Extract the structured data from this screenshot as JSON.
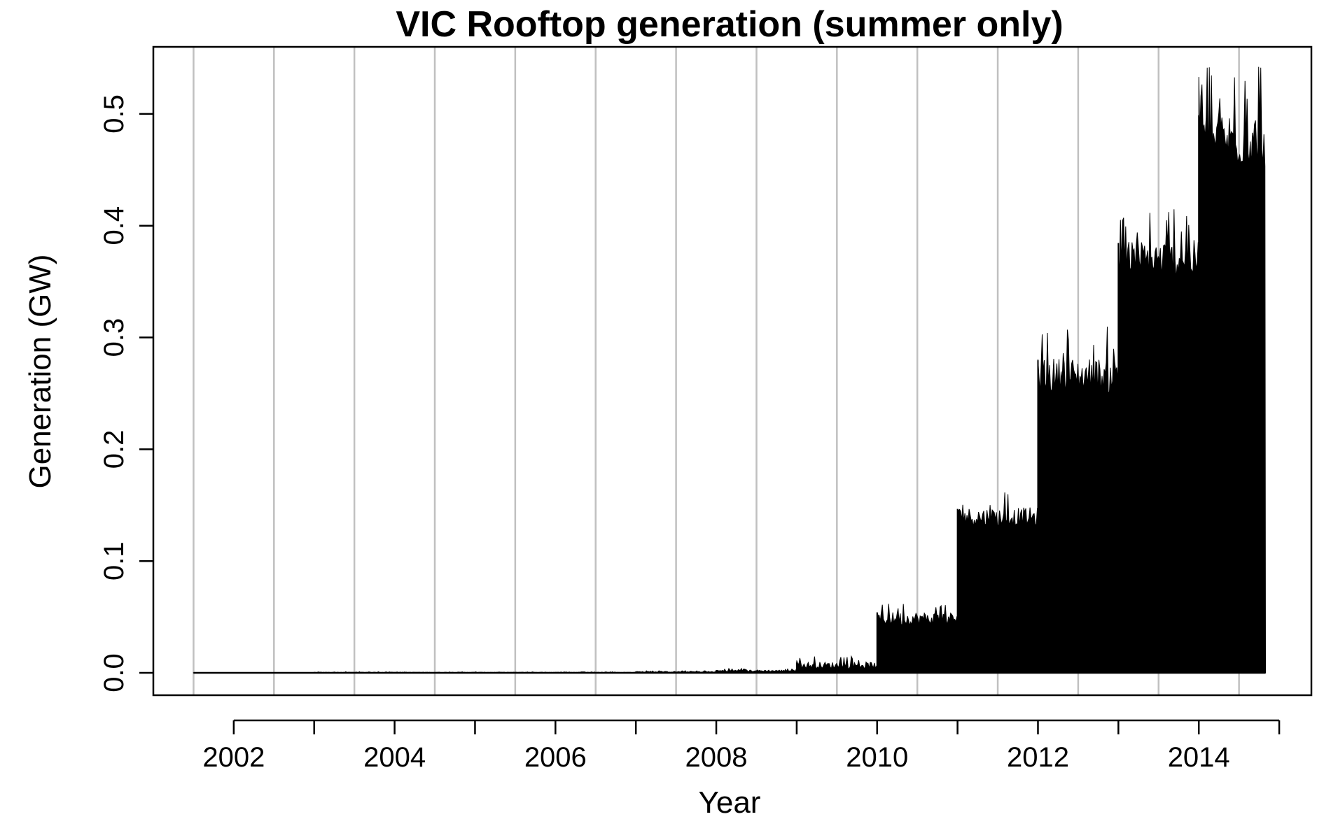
{
  "chart_data": {
    "type": "area",
    "title": "VIC Rooftop generation (summer only)",
    "xlabel": "Year",
    "ylabel": "Generation (GW)",
    "xlim": [
      2001.0,
      2015.4
    ],
    "ylim": [
      -0.02,
      0.56
    ],
    "x_ticks": [
      2002,
      2003,
      2004,
      2005,
      2006,
      2007,
      2008,
      2009,
      2010,
      2011,
      2012,
      2013,
      2014,
      2015
    ],
    "x_tick_labels": [
      "2002",
      "",
      "2004",
      "",
      "2006",
      "",
      "2008",
      "",
      "2010",
      "",
      "2012",
      "",
      "2014",
      ""
    ],
    "y_ticks": [
      0.0,
      0.1,
      0.2,
      0.3,
      0.4,
      0.5
    ],
    "y_tick_labels": [
      "0.0",
      "0.1",
      "0.2",
      "0.3",
      "0.4",
      "0.5"
    ],
    "grid": "vertical lines at mid-year",
    "grid_x": [
      2001.5,
      2002.5,
      2003.5,
      2004.5,
      2005.5,
      2006.5,
      2007.5,
      2008.5,
      2009.5,
      2010.5,
      2011.5,
      2012.5,
      2013.5,
      2014.5
    ],
    "grid_color": "#c0c0c0",
    "series": [
      {
        "color": "#000000",
        "segments": [
          {
            "start": 2001.5,
            "end": 2003.0,
            "base": 0.0,
            "peak": 0.0003
          },
          {
            "start": 2003.0,
            "end": 2007.0,
            "base": 0.0,
            "peak": 0.001
          },
          {
            "start": 2007.0,
            "end": 2008.0,
            "base": 0.0,
            "peak": 0.002
          },
          {
            "start": 2008.0,
            "end": 2009.0,
            "base": 0.0,
            "peak": 0.004
          },
          {
            "start": 2009.0,
            "end": 2010.0,
            "base": 0.0,
            "peak": 0.015
          },
          {
            "start": 2010.0,
            "end": 2011.0,
            "base": 0.035,
            "peak": 0.065
          },
          {
            "start": 2011.0,
            "end": 2012.0,
            "base": 0.12,
            "peak": 0.163
          },
          {
            "start": 2012.0,
            "end": 2013.0,
            "base": 0.23,
            "peak": 0.31
          },
          {
            "start": 2013.0,
            "end": 2014.0,
            "base": 0.33,
            "peak": 0.418
          },
          {
            "start": 2014.0,
            "end": 2014.83,
            "base": 0.42,
            "peak": 0.547
          }
        ]
      }
    ]
  }
}
